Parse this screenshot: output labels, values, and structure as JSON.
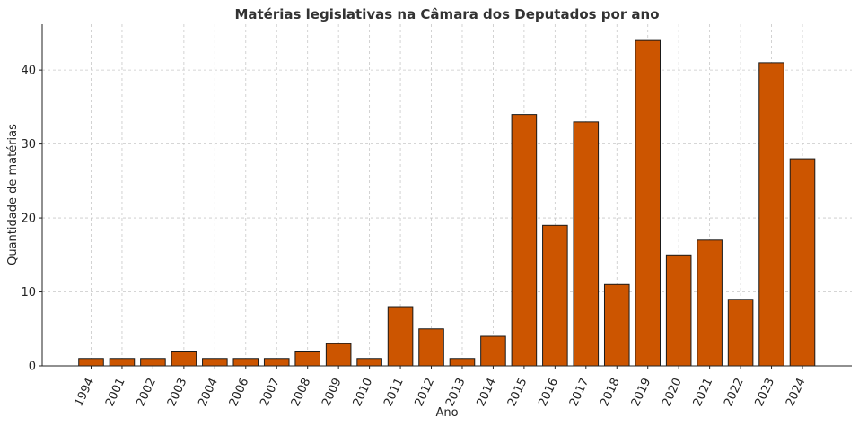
{
  "chart_data": {
    "type": "bar",
    "title": "Matérias legislativas na Câmara dos Deputados por ano",
    "xlabel": "Ano",
    "ylabel": "Quantidade de matérias",
    "categories": [
      "1994",
      "2001",
      "2002",
      "2003",
      "2004",
      "2006",
      "2007",
      "2008",
      "2009",
      "2010",
      "2011",
      "2012",
      "2013",
      "2014",
      "2015",
      "2016",
      "2017",
      "2018",
      "2019",
      "2020",
      "2021",
      "2022",
      "2023",
      "2024"
    ],
    "values": [
      1,
      1,
      1,
      2,
      1,
      1,
      1,
      2,
      3,
      1,
      8,
      5,
      1,
      4,
      34,
      19,
      33,
      11,
      44,
      15,
      17,
      9,
      41,
      28
    ],
    "ylim": [
      0,
      46.2
    ],
    "yticks": [
      0,
      10,
      20,
      30,
      40
    ],
    "grid": true,
    "bar_color": "#cc5500",
    "edge_color": "#1a1a1a"
  }
}
